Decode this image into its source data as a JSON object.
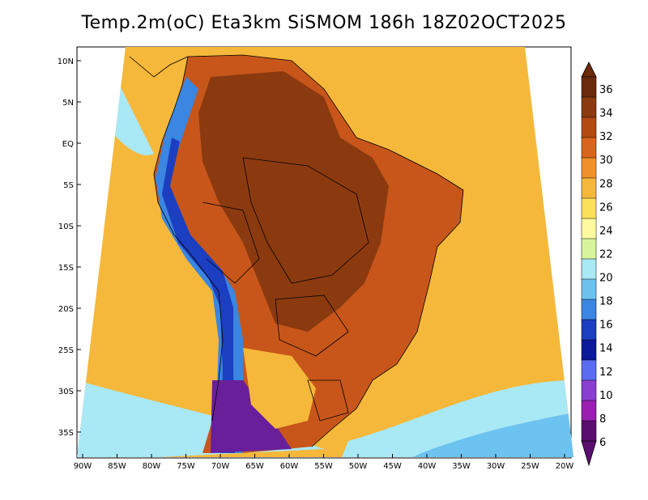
{
  "title": "Temp.2m(oC) Eta3km SiSMOM 186h 18Z02OCT2025",
  "lat_labels": [
    "10N",
    "5N",
    "EQ",
    "5S",
    "10S",
    "15S",
    "20S",
    "25S",
    "30S",
    "35S"
  ],
  "lon_labels": [
    "90W",
    "85W",
    "80W",
    "75W",
    "70W",
    "65W",
    "60W",
    "55W",
    "50W",
    "45W",
    "40W",
    "35W",
    "30W",
    "25W",
    "20W"
  ],
  "colorbar": {
    "labels": [
      "36",
      "34",
      "32",
      "30",
      "28",
      "26",
      "24",
      "22",
      "20",
      "18",
      "16",
      "14",
      "12",
      "10",
      "8",
      "6"
    ],
    "colors": [
      "#6b2a0a",
      "#8b3a0f",
      "#b34a12",
      "#d9651c",
      "#f0902a",
      "#f5b83a",
      "#fde15a",
      "#fffaa0",
      "#d7f59a",
      "#a9e8f5",
      "#6cc3f0",
      "#3a86e0",
      "#1c3ec0",
      "#0a1a9a",
      "#5b6cf0",
      "#8a3fd0",
      "#9a1fb0",
      "#5a0f70"
    ]
  },
  "map": {
    "ocean_color": "#f5b83a",
    "land_color": "#c8561a",
    "hot_color": "#8b3a0f",
    "andes_cold": "#3a86e0",
    "andes_colder": "#1c3ec0",
    "andes_coldest": "#6a1f9a",
    "south_ocean_cool": "#a9e8f5",
    "south_ocean_cold": "#6cc3f0"
  }
}
